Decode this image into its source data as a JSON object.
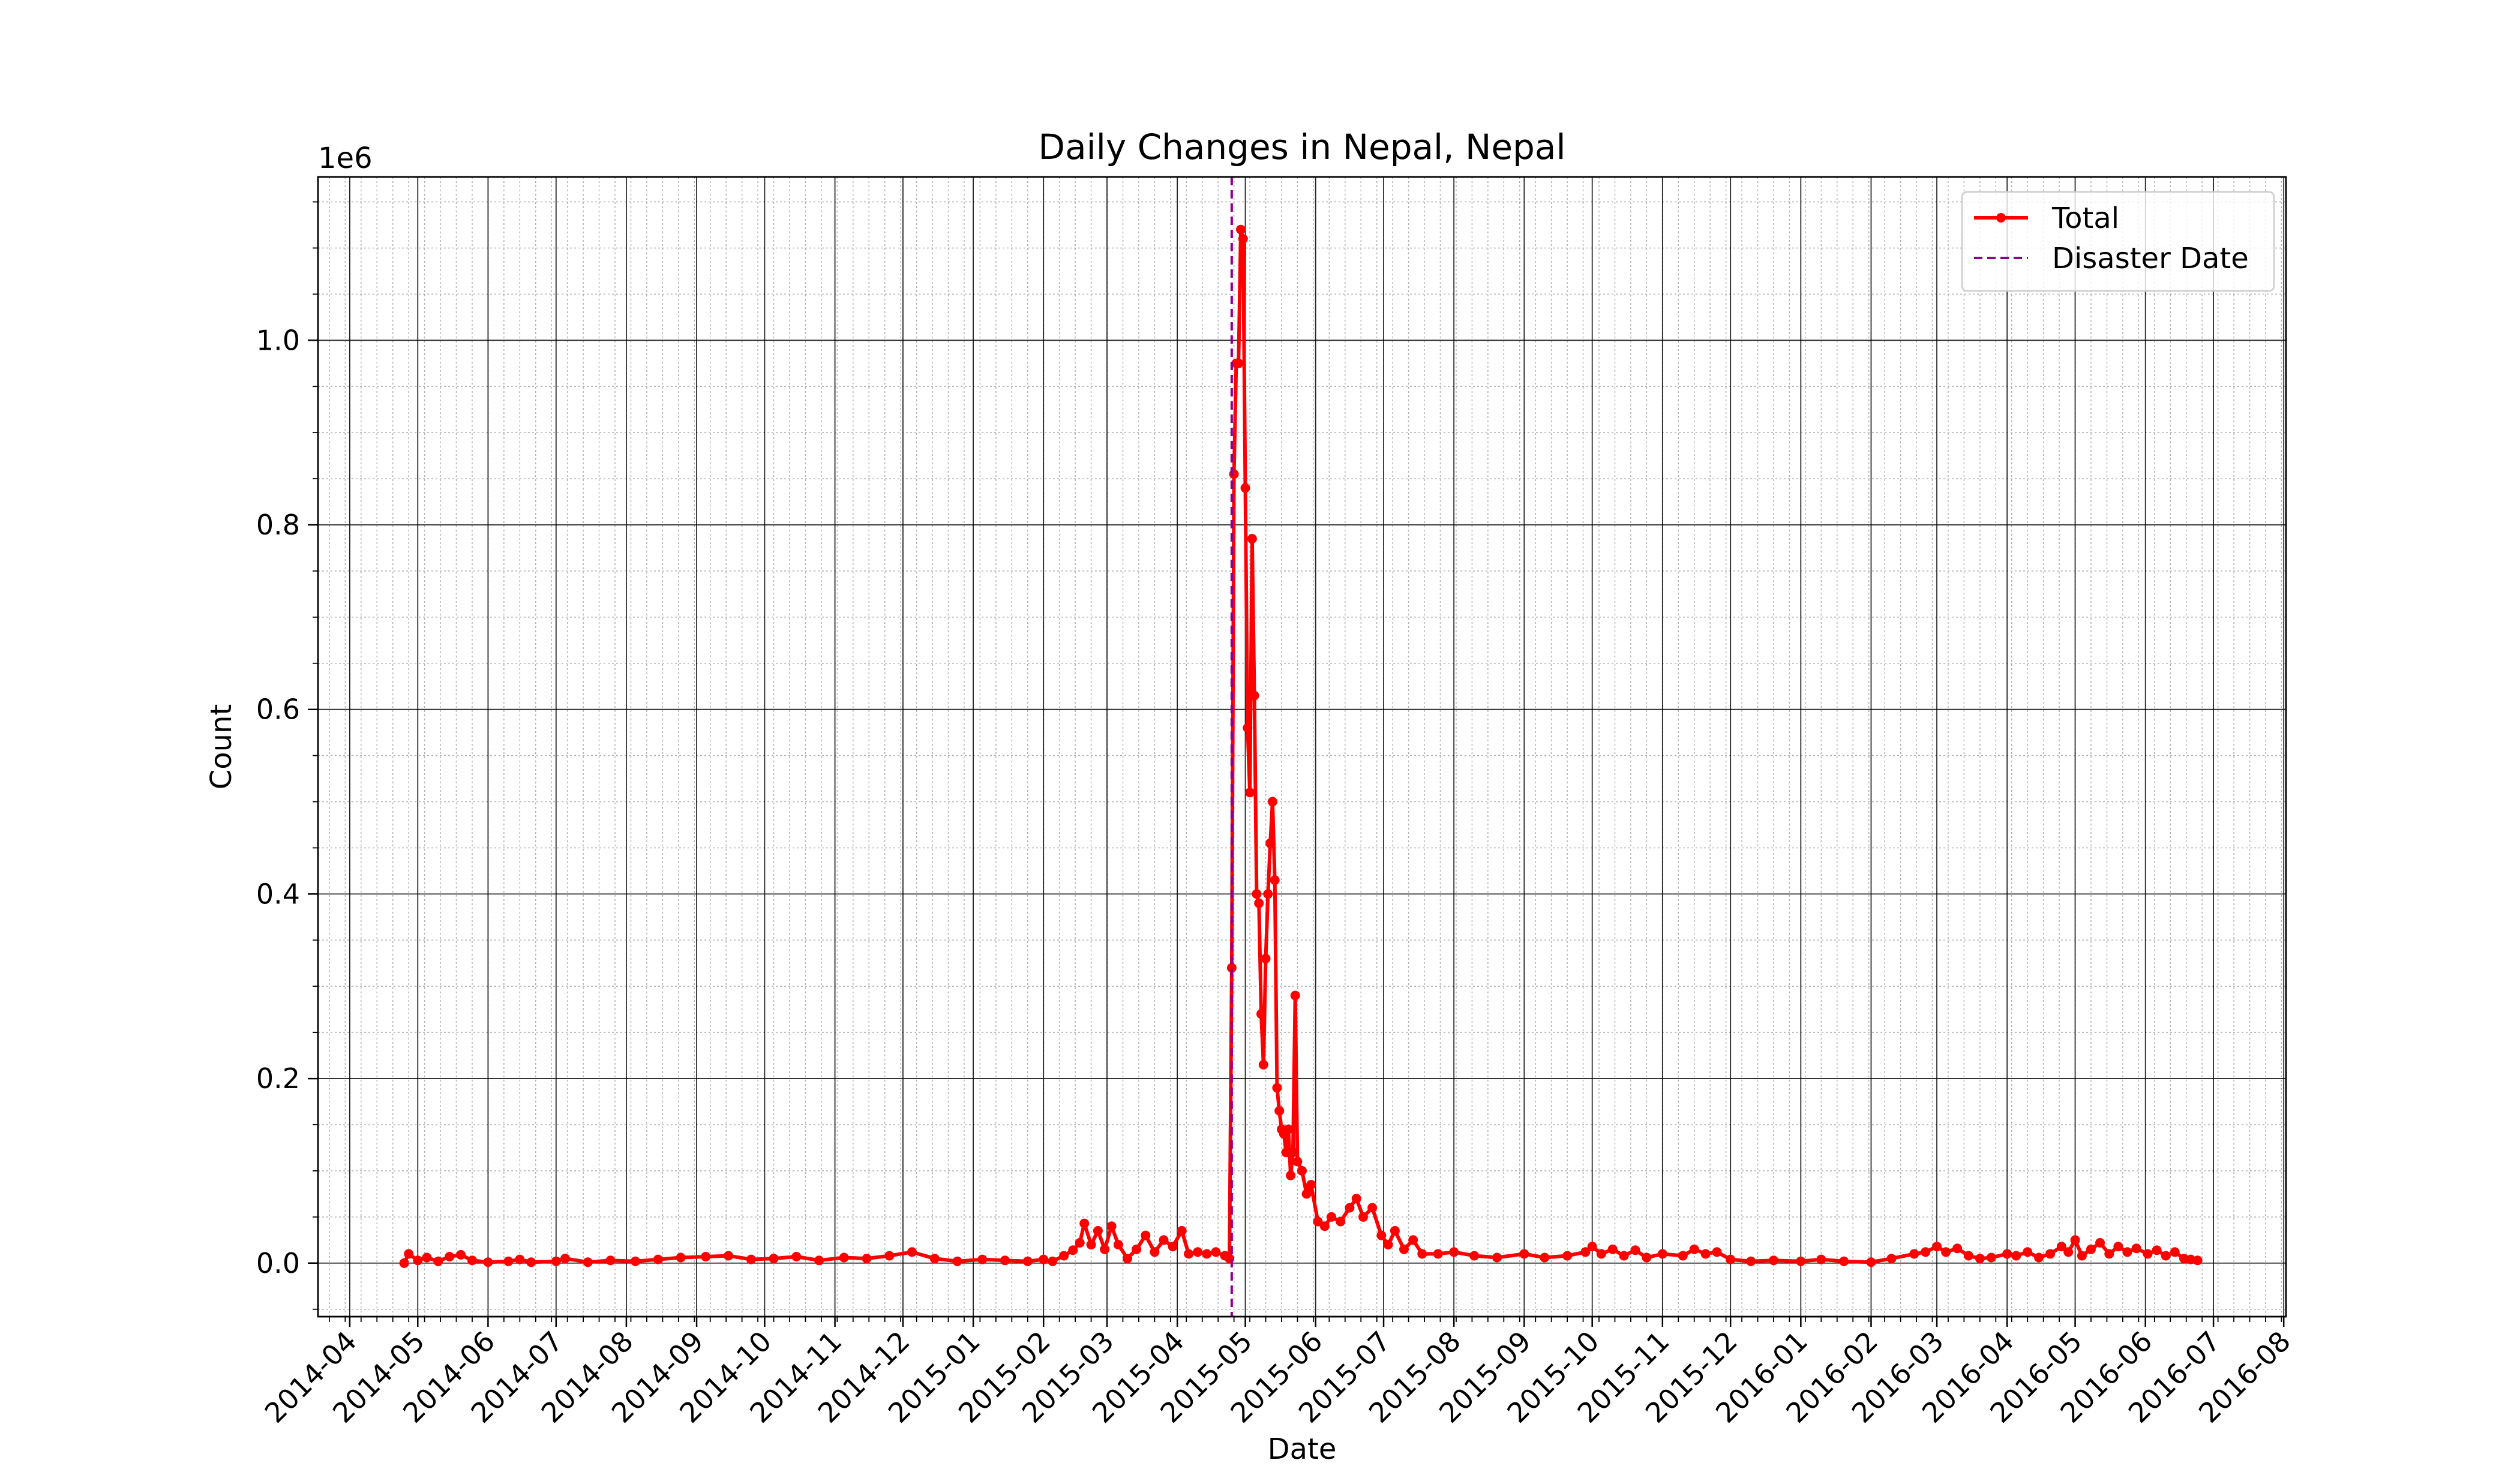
{
  "chart_data": {
    "type": "line",
    "title": "Daily Changes in Nepal, Nepal",
    "xlabel": "Date",
    "ylabel": "Count",
    "y_offset_label": "1e6",
    "ylim": [
      -0.058,
      1.177
    ],
    "y_ticks": [
      0.0,
      0.2,
      0.4,
      0.6,
      0.8,
      1.0
    ],
    "y_tick_labels": [
      "0.0",
      "0.2",
      "0.4",
      "0.6",
      "0.8",
      "1.0"
    ],
    "y_unit_multiplier": 1000000,
    "xlim": [
      "2014-03-18",
      "2016-08-02"
    ],
    "x_ticks": [
      "2014-04-01",
      "2014-05-01",
      "2014-06-01",
      "2014-07-01",
      "2014-08-01",
      "2014-09-01",
      "2014-10-01",
      "2014-11-01",
      "2014-12-01",
      "2015-01-01",
      "2015-02-01",
      "2015-03-01",
      "2015-04-01",
      "2015-05-01",
      "2015-06-01",
      "2015-07-01",
      "2015-08-01",
      "2015-09-01",
      "2015-10-01",
      "2015-11-01",
      "2015-12-01",
      "2016-01-01",
      "2016-02-01",
      "2016-03-01",
      "2016-04-01",
      "2016-05-01",
      "2016-06-01",
      "2016-07-01",
      "2016-08-01"
    ],
    "x_tick_labels": [
      "2014-04",
      "2014-05",
      "2014-06",
      "2014-07",
      "2014-08",
      "2014-09",
      "2014-10",
      "2014-11",
      "2014-12",
      "2015-01",
      "2015-02",
      "2015-03",
      "2015-04",
      "2015-05",
      "2015-06",
      "2015-07",
      "2015-08",
      "2015-09",
      "2015-10",
      "2015-11",
      "2015-12",
      "2016-01",
      "2016-02",
      "2016-03",
      "2016-04",
      "2016-05",
      "2016-06",
      "2016-07",
      "2016-08"
    ],
    "grid": {
      "major": true,
      "minor": true
    },
    "legend": {
      "position": "top-right",
      "entries": [
        "Total",
        "Disaster Date"
      ]
    },
    "series": [
      {
        "name": "Total",
        "color": "#ff0000",
        "style": "solid-with-markers",
        "points": [
          [
            "2014-04-25",
            0.0
          ],
          [
            "2014-04-27",
            0.01
          ],
          [
            "2014-05-01",
            0.003
          ],
          [
            "2014-05-05",
            0.006
          ],
          [
            "2014-05-10",
            0.002
          ],
          [
            "2014-05-15",
            0.007
          ],
          [
            "2014-05-20",
            0.009
          ],
          [
            "2014-05-25",
            0.003
          ],
          [
            "2014-06-01",
            0.001
          ],
          [
            "2014-06-10",
            0.002
          ],
          [
            "2014-06-15",
            0.004
          ],
          [
            "2014-06-20",
            0.001
          ],
          [
            "2014-07-01",
            0.002
          ],
          [
            "2014-07-05",
            0.005
          ],
          [
            "2014-07-15",
            0.001
          ],
          [
            "2014-07-25",
            0.003
          ],
          [
            "2014-08-05",
            0.002
          ],
          [
            "2014-08-15",
            0.004
          ],
          [
            "2014-08-25",
            0.006
          ],
          [
            "2014-09-05",
            0.007
          ],
          [
            "2014-09-15",
            0.008
          ],
          [
            "2014-09-25",
            0.004
          ],
          [
            "2014-10-05",
            0.005
          ],
          [
            "2014-10-15",
            0.007
          ],
          [
            "2014-10-25",
            0.003
          ],
          [
            "2014-11-05",
            0.006
          ],
          [
            "2014-11-15",
            0.005
          ],
          [
            "2014-11-25",
            0.008
          ],
          [
            "2014-12-05",
            0.012
          ],
          [
            "2014-12-15",
            0.005
          ],
          [
            "2014-12-25",
            0.002
          ],
          [
            "2015-01-05",
            0.004
          ],
          [
            "2015-01-15",
            0.003
          ],
          [
            "2015-01-25",
            0.002
          ],
          [
            "2015-02-01",
            0.004
          ],
          [
            "2015-02-05",
            0.002
          ],
          [
            "2015-02-10",
            0.008
          ],
          [
            "2015-02-14",
            0.014
          ],
          [
            "2015-02-17",
            0.022
          ],
          [
            "2015-02-19",
            0.043
          ],
          [
            "2015-02-22",
            0.02
          ],
          [
            "2015-02-25",
            0.035
          ],
          [
            "2015-02-28",
            0.015
          ],
          [
            "2015-03-03",
            0.04
          ],
          [
            "2015-03-06",
            0.02
          ],
          [
            "2015-03-10",
            0.005
          ],
          [
            "2015-03-14",
            0.015
          ],
          [
            "2015-03-18",
            0.03
          ],
          [
            "2015-03-22",
            0.012
          ],
          [
            "2015-03-26",
            0.025
          ],
          [
            "2015-03-30",
            0.018
          ],
          [
            "2015-04-03",
            0.035
          ],
          [
            "2015-04-06",
            0.01
          ],
          [
            "2015-04-10",
            0.012
          ],
          [
            "2015-04-14",
            0.01
          ],
          [
            "2015-04-18",
            0.012
          ],
          [
            "2015-04-22",
            0.008
          ],
          [
            "2015-04-24",
            0.005
          ],
          [
            "2015-04-25",
            0.32
          ],
          [
            "2015-04-26",
            0.855
          ],
          [
            "2015-04-27",
            0.975
          ],
          [
            "2015-04-28",
            0.975
          ],
          [
            "2015-04-29",
            1.12
          ],
          [
            "2015-04-30",
            1.11
          ],
          [
            "2015-05-01",
            0.84
          ],
          [
            "2015-05-02",
            0.58
          ],
          [
            "2015-05-03",
            0.51
          ],
          [
            "2015-05-04",
            0.785
          ],
          [
            "2015-05-05",
            0.615
          ],
          [
            "2015-05-06",
            0.4
          ],
          [
            "2015-05-07",
            0.39
          ],
          [
            "2015-05-08",
            0.27
          ],
          [
            "2015-05-09",
            0.215
          ],
          [
            "2015-05-10",
            0.33
          ],
          [
            "2015-05-11",
            0.4
          ],
          [
            "2015-05-12",
            0.455
          ],
          [
            "2015-05-13",
            0.5
          ],
          [
            "2015-05-14",
            0.415
          ],
          [
            "2015-05-15",
            0.19
          ],
          [
            "2015-05-16",
            0.165
          ],
          [
            "2015-05-17",
            0.145
          ],
          [
            "2015-05-18",
            0.14
          ],
          [
            "2015-05-19",
            0.12
          ],
          [
            "2015-05-20",
            0.145
          ],
          [
            "2015-05-21",
            0.095
          ],
          [
            "2015-05-22",
            0.12
          ],
          [
            "2015-05-23",
            0.29
          ],
          [
            "2015-05-24",
            0.11
          ],
          [
            "2015-05-26",
            0.1
          ],
          [
            "2015-05-28",
            0.075
          ],
          [
            "2015-05-30",
            0.085
          ],
          [
            "2015-06-02",
            0.045
          ],
          [
            "2015-06-05",
            0.04
          ],
          [
            "2015-06-08",
            0.05
          ],
          [
            "2015-06-12",
            0.045
          ],
          [
            "2015-06-16",
            0.06
          ],
          [
            "2015-06-19",
            0.07
          ],
          [
            "2015-06-22",
            0.05
          ],
          [
            "2015-06-26",
            0.06
          ],
          [
            "2015-06-30",
            0.03
          ],
          [
            "2015-07-03",
            0.02
          ],
          [
            "2015-07-06",
            0.035
          ],
          [
            "2015-07-10",
            0.015
          ],
          [
            "2015-07-14",
            0.025
          ],
          [
            "2015-07-18",
            0.01
          ],
          [
            "2015-07-25",
            0.01
          ],
          [
            "2015-08-01",
            0.012
          ],
          [
            "2015-08-10",
            0.008
          ],
          [
            "2015-08-20",
            0.006
          ],
          [
            "2015-09-01",
            0.01
          ],
          [
            "2015-09-10",
            0.006
          ],
          [
            "2015-09-20",
            0.008
          ],
          [
            "2015-09-28",
            0.012
          ],
          [
            "2015-10-01",
            0.018
          ],
          [
            "2015-10-05",
            0.01
          ],
          [
            "2015-10-10",
            0.015
          ],
          [
            "2015-10-15",
            0.008
          ],
          [
            "2015-10-20",
            0.014
          ],
          [
            "2015-10-25",
            0.006
          ],
          [
            "2015-11-01",
            0.01
          ],
          [
            "2015-11-10",
            0.008
          ],
          [
            "2015-11-15",
            0.015
          ],
          [
            "2015-11-20",
            0.01
          ],
          [
            "2015-11-25",
            0.012
          ],
          [
            "2015-12-01",
            0.004
          ],
          [
            "2015-12-10",
            0.002
          ],
          [
            "2015-12-20",
            0.003
          ],
          [
            "2016-01-01",
            0.002
          ],
          [
            "2016-01-10",
            0.004
          ],
          [
            "2016-01-20",
            0.002
          ],
          [
            "2016-02-01",
            0.001
          ],
          [
            "2016-02-10",
            0.005
          ],
          [
            "2016-02-20",
            0.01
          ],
          [
            "2016-02-25",
            0.012
          ],
          [
            "2016-03-01",
            0.018
          ],
          [
            "2016-03-05",
            0.012
          ],
          [
            "2016-03-10",
            0.016
          ],
          [
            "2016-03-15",
            0.008
          ],
          [
            "2016-03-20",
            0.005
          ],
          [
            "2016-03-25",
            0.006
          ],
          [
            "2016-04-01",
            0.01
          ],
          [
            "2016-04-05",
            0.008
          ],
          [
            "2016-04-10",
            0.012
          ],
          [
            "2016-04-15",
            0.006
          ],
          [
            "2016-04-20",
            0.01
          ],
          [
            "2016-04-25",
            0.018
          ],
          [
            "2016-04-28",
            0.012
          ],
          [
            "2016-05-01",
            0.025
          ],
          [
            "2016-05-04",
            0.008
          ],
          [
            "2016-05-08",
            0.015
          ],
          [
            "2016-05-12",
            0.022
          ],
          [
            "2016-05-16",
            0.01
          ],
          [
            "2016-05-20",
            0.018
          ],
          [
            "2016-05-24",
            0.012
          ],
          [
            "2016-05-28",
            0.016
          ],
          [
            "2016-06-02",
            0.01
          ],
          [
            "2016-06-06",
            0.014
          ],
          [
            "2016-06-10",
            0.008
          ],
          [
            "2016-06-14",
            0.012
          ],
          [
            "2016-06-18",
            0.005
          ],
          [
            "2016-06-21",
            0.004
          ],
          [
            "2016-06-24",
            0.003
          ]
        ]
      }
    ],
    "disaster_line": {
      "name": "Disaster Date",
      "date": "2015-04-25",
      "color": "#8b008b",
      "style": "dashed"
    }
  }
}
